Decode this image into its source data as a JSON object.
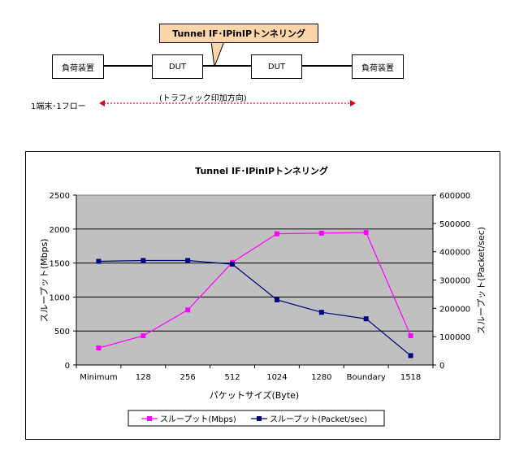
{
  "diagram": {
    "box_left": "負荷装置",
    "box_dut1": "DUT",
    "box_dut2": "DUT",
    "box_right": "負荷装置",
    "callout": "Tunnel IF･IPinIPトンネリング",
    "traffic_label": "(トラフィック印加方向)",
    "flow_label": "1端末･1フロー",
    "arrow_color": "#e0001a"
  },
  "chart_data": {
    "type": "line",
    "title": "Tunnel IF･IPinIPトンネリング",
    "xlabel": "パケットサイズ(Byte)",
    "ylabel": "スループット(Mbps)",
    "y2label": "スループット(Packet/sec)",
    "categories": [
      "Minimum",
      "128",
      "256",
      "512",
      "1024",
      "1280",
      "Boundary",
      "1518"
    ],
    "ylim": [
      0,
      2500
    ],
    "y_ticks": [
      "0",
      "500",
      "1000",
      "1500",
      "2000",
      "2500"
    ],
    "y2lim": [
      0,
      600000
    ],
    "y2_ticks": [
      "0",
      "100000",
      "200000",
      "300000",
      "400000",
      "500000",
      "600000"
    ],
    "grid": true,
    "plot_background": "#c0c0c0",
    "legend_position": "bottom",
    "series": [
      {
        "name": "スループット(Mbps)",
        "axis": "left",
        "color": "#ff00ff",
        "values": [
          250,
          430,
          810,
          1510,
          1930,
          1940,
          1950,
          430
        ]
      },
      {
        "name": "スループット(Packet/sec)",
        "axis": "right",
        "color": "#000080",
        "values": [
          366000,
          369000,
          369000,
          356000,
          230000,
          186000,
          163000,
          33000
        ]
      }
    ]
  }
}
